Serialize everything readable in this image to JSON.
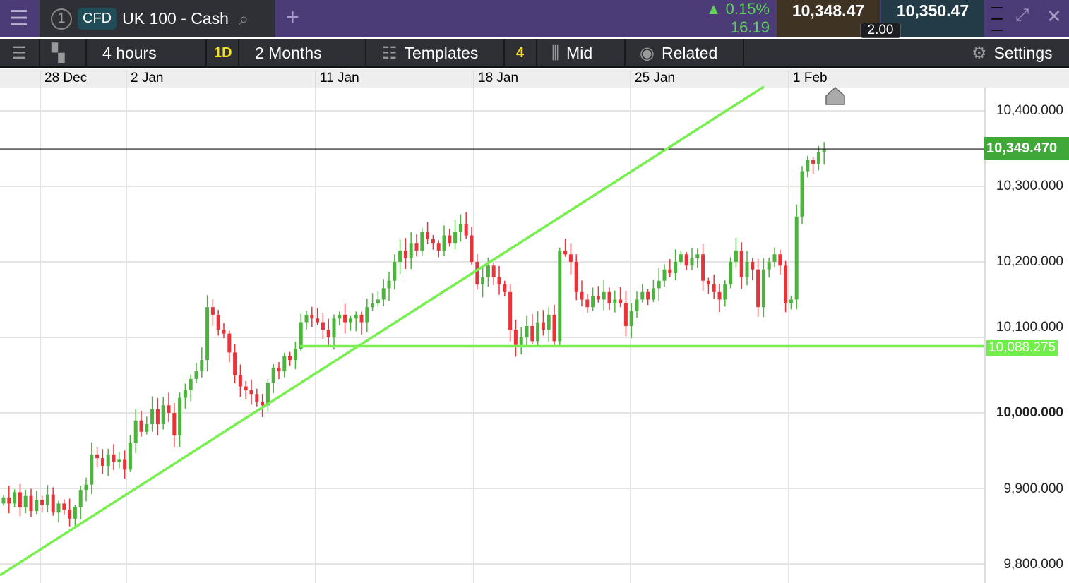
{
  "header": {
    "tab_number": "1",
    "badge": "CFD",
    "instrument": "UK 100 - Cash",
    "change_pct": "▲ 0.15%",
    "change_abs": "16.19",
    "sell": "10,348.47",
    "buy": "10,350.47",
    "spread": "2.00"
  },
  "toolbar": {
    "interval": "4 hours",
    "interval_badge": "1D",
    "range": "2 Months",
    "templates": "Templates",
    "templates_count": "4",
    "price_type": "Mid",
    "related": "Related",
    "settings": "Settings"
  },
  "colors": {
    "up": "#4cb33d",
    "down": "#e8333a",
    "trendline": "#77f04f",
    "header_bg": "#4b3c77"
  },
  "chart_data": {
    "type": "candlestick",
    "x_ticks": [
      "28 Dec",
      "2 Jan",
      "11 Jan",
      "18 Jan",
      "25 Jan",
      "1 Feb"
    ],
    "y_ticks": [
      "10,400.000",
      "10,300.000",
      "10,200.000",
      "10,100.000",
      "10,000.000",
      "9,900.000",
      "9,800.000"
    ],
    "ylim": [
      9790,
      10430
    ],
    "grid": true,
    "current_price": 10349.47,
    "current_price_label": "10,349.470",
    "support_level": 10088.275,
    "support_label": "10,088.275",
    "trendline": {
      "start_price": 9785,
      "end_price": 10432
    },
    "open_first": 9880,
    "closes": [
      9888,
      9880,
      9895,
      9875,
      9890,
      9870,
      9885,
      9878,
      9892,
      9868,
      9880,
      9872,
      9860,
      9875,
      9898,
      9905,
      9945,
      9940,
      9930,
      9945,
      9935,
      9938,
      9925,
      9960,
      9990,
      9975,
      9985,
      10005,
      9985,
      10010,
      10000,
      9970,
      10020,
      10030,
      10045,
      10055,
      10070,
      10140,
      10130,
      10110,
      10105,
      10080,
      10050,
      10035,
      10030,
      10025,
      10015,
      10010,
      10040,
      10060,
      10055,
      10075,
      10070,
      10085,
      10120,
      10130,
      10125,
      10120,
      10110,
      10100,
      10125,
      10130,
      10120,
      10125,
      10130,
      10120,
      10140,
      10145,
      10150,
      10165,
      10175,
      10200,
      10215,
      10205,
      10225,
      10215,
      10240,
      10230,
      10225,
      10215,
      10235,
      10225,
      10240,
      10250,
      10235,
      10200,
      10170,
      10180,
      10195,
      10180,
      10170,
      10160,
      10110,
      10090,
      10100,
      10115,
      10095,
      10120,
      10110,
      10130,
      10095,
      10215,
      10210,
      10200,
      10160,
      10150,
      10140,
      10155,
      10150,
      10160,
      10145,
      10150,
      10145,
      10115,
      10135,
      10150,
      10160,
      10150,
      10165,
      10175,
      10190,
      10185,
      10200,
      10210,
      10195,
      10205,
      10210,
      10175,
      10170,
      10160,
      10150,
      10170,
      10200,
      10215,
      10180,
      10200,
      10190,
      10140,
      10190,
      10200,
      10210,
      10195,
      10145,
      10150,
      10260,
      10320,
      10335,
      10330,
      10345,
      10349
    ]
  }
}
